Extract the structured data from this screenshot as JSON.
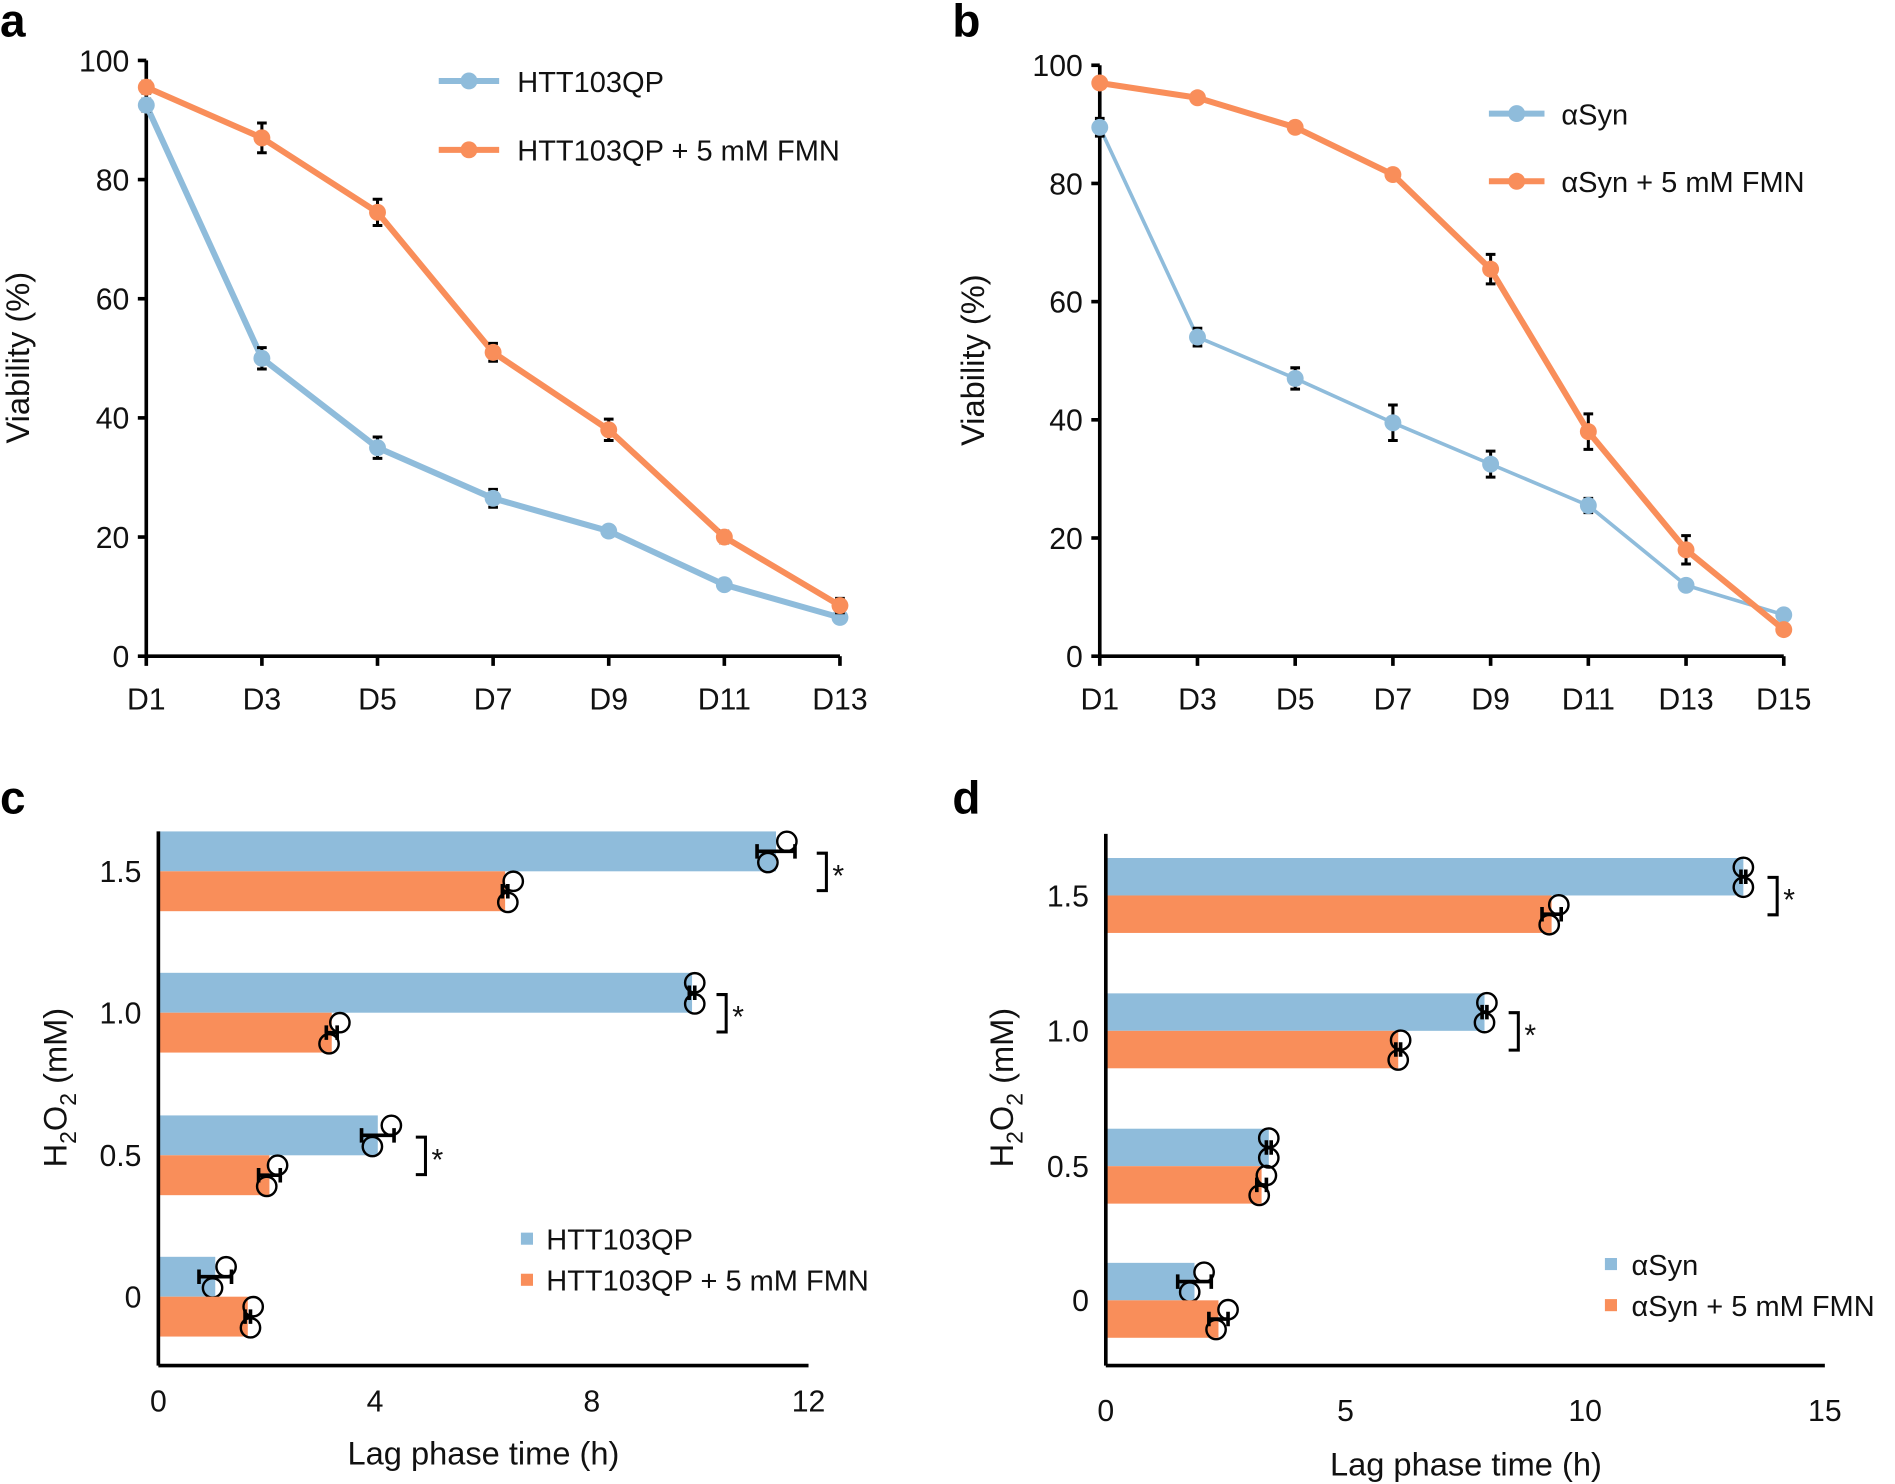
{
  "colors": {
    "blue": "#8fbcdb",
    "orange": "#f98e5a"
  },
  "chart_data": [
    {
      "panel": "a",
      "type": "line",
      "categories": [
        "D1",
        "D3",
        "D5",
        "D7",
        "D9",
        "D11",
        "D13"
      ],
      "ylabel": "Viability (%)",
      "xlabel": "",
      "ylim": [
        0,
        100
      ],
      "yticks": [
        0,
        20,
        40,
        60,
        80,
        100
      ],
      "legend": "top-right",
      "series": [
        {
          "name": "HTT103QP",
          "color": "blue",
          "values": [
            92.5,
            50,
            35,
            26.5,
            21,
            12,
            6.5
          ],
          "err": [
            1,
            1.8,
            1.8,
            1.5,
            0.6,
            0.8,
            0.8
          ]
        },
        {
          "name": "HTT103QP + 5 mM FMN",
          "color": "orange",
          "values": [
            95.5,
            87,
            74.5,
            51,
            38,
            20,
            8.5
          ],
          "err": [
            1,
            2.5,
            2.2,
            1.5,
            1.8,
            1,
            1.2
          ]
        }
      ]
    },
    {
      "panel": "b",
      "type": "line",
      "categories": [
        "D1",
        "D3",
        "D5",
        "D7",
        "D9",
        "D11",
        "D13",
        "D15"
      ],
      "ylabel": "Viability (%)",
      "xlabel": "",
      "ylim": [
        0,
        100
      ],
      "yticks": [
        0,
        20,
        40,
        60,
        80,
        100
      ],
      "legend": "top-right",
      "series": [
        {
          "name": "αSyn",
          "color": "blue",
          "values": [
            89.5,
            54,
            47,
            39.5,
            32.5,
            25.5,
            12,
            7
          ],
          "err": [
            1.5,
            1.5,
            1.8,
            3,
            2.2,
            1.2,
            0.5,
            0.5
          ]
        },
        {
          "name": "αSyn + 5 mM FMN",
          "color": "orange",
          "values": [
            97,
            94.5,
            89.5,
            81.5,
            65.5,
            38,
            18,
            4.5
          ],
          "err": [
            0.5,
            0.5,
            0.5,
            0.5,
            2.5,
            3,
            2.4,
            0.5
          ]
        }
      ]
    },
    {
      "panel": "c",
      "type": "bar",
      "orientation": "horizontal",
      "categories": [
        "1.5",
        "1.0",
        "0.5",
        "0"
      ],
      "xlabel": "Lag phase time (h)",
      "ylabel_main": "H",
      "ylabel_sub1": "2",
      "ylabel_mid": "O",
      "ylabel_sub2": "2",
      "ylabel_tail": " (mM)",
      "xlim": [
        0,
        12
      ],
      "xticks": [
        0,
        4,
        8,
        12
      ],
      "legend": "bottom-right",
      "significance": [
        "*",
        "*",
        "*",
        ""
      ],
      "series": [
        {
          "name": "HTT103QP",
          "color": "blue",
          "values": [
            11.4,
            9.85,
            4.05,
            1.05
          ],
          "err": [
            0.35,
            0.05,
            0.3,
            0.3
          ],
          "points": [
            [
              11.6,
              11.25
            ],
            [
              9.9,
              9.9
            ],
            [
              4.3,
              3.95
            ],
            [
              1.25,
              1.0
            ]
          ]
        },
        {
          "name": "HTT103QP + 5 mM FMN",
          "color": "orange",
          "values": [
            6.4,
            3.2,
            2.05,
            1.65
          ],
          "err": [
            0.05,
            0.1,
            0.2,
            0.05
          ],
          "points": [
            [
              6.55,
              6.45
            ],
            [
              3.35,
              3.15
            ],
            [
              2.2,
              2.0
            ],
            [
              1.75,
              1.7
            ]
          ]
        }
      ]
    },
    {
      "panel": "d",
      "type": "bar",
      "orientation": "horizontal",
      "categories": [
        "1.5",
        "1.0",
        "0.5",
        "0"
      ],
      "xlabel": "Lag phase time (h)",
      "ylabel_main": "H",
      "ylabel_sub1": "2",
      "ylabel_mid": "O",
      "ylabel_sub2": "2",
      "ylabel_tail": " (mM)",
      "xlim": [
        0,
        15
      ],
      "xticks": [
        0,
        5,
        10,
        15
      ],
      "legend": "bottom-right",
      "significance": [
        "*",
        "*",
        "",
        ""
      ],
      "series": [
        {
          "name": "αSyn",
          "color": "blue",
          "values": [
            13.3,
            7.9,
            3.4,
            1.85
          ],
          "err": [
            0.05,
            0.05,
            0.05,
            0.35
          ],
          "points": [
            [
              13.3,
              13.3
            ],
            [
              7.95,
              7.9
            ],
            [
              3.4,
              3.4
            ],
            [
              2.05,
              1.75
            ]
          ]
        },
        {
          "name": "αSyn + 5 mM FMN",
          "color": "orange",
          "values": [
            9.3,
            6.1,
            3.25,
            2.35
          ],
          "err": [
            0.2,
            0.05,
            0.1,
            0.2
          ],
          "points": [
            [
              9.45,
              9.25
            ],
            [
              6.15,
              6.1
            ],
            [
              3.35,
              3.2
            ],
            [
              2.55,
              2.3
            ]
          ]
        }
      ]
    }
  ]
}
